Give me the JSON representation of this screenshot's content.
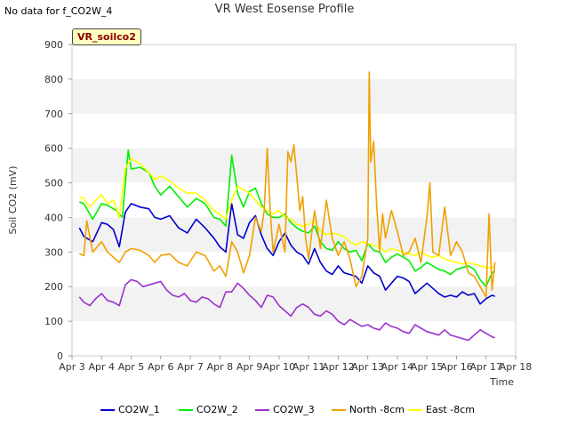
{
  "no_data_note": "No data for f_CO2W_4",
  "site_badge": "VR_soilco2",
  "chart_data": {
    "type": "line",
    "title": "VR West Eosense Profile",
    "xlabel": "Time",
    "ylabel": "Soil CO2 (mV)",
    "ylim": [
      0,
      900
    ],
    "yticks": [
      0,
      100,
      200,
      300,
      400,
      500,
      600,
      700,
      800,
      900
    ],
    "xlim": [
      3,
      18
    ],
    "xticks": [
      3,
      4,
      5,
      6,
      7,
      8,
      9,
      10,
      11,
      12,
      13,
      14,
      15,
      16,
      17,
      18
    ],
    "xtick_labels": [
      "Apr 3",
      "Apr 4",
      "Apr 5",
      "Apr 6",
      "Apr 7",
      "Apr 8",
      "Apr 9",
      "Apr 10",
      "Apr 11",
      "Apr 12",
      "Apr 13",
      "Apr 14",
      "Apr 15",
      "Apr 16",
      "Apr 17",
      "Apr 18"
    ],
    "grid": "alternating horizontal bands",
    "legend": "bottom",
    "series": [
      {
        "name": "CO2W_1",
        "color": "#0000cc",
        "x": [
          3.25,
          3.4,
          3.7,
          4.0,
          4.2,
          4.4,
          4.6,
          4.8,
          5.0,
          5.3,
          5.6,
          5.8,
          6.0,
          6.3,
          6.6,
          6.9,
          7.2,
          7.5,
          7.8,
          8.0,
          8.2,
          8.4,
          8.6,
          8.8,
          9.0,
          9.2,
          9.4,
          9.6,
          9.8,
          10.0,
          10.2,
          10.4,
          10.6,
          10.8,
          11.0,
          11.2,
          11.4,
          11.6,
          11.8,
          12.0,
          12.2,
          12.4,
          12.6,
          12.8,
          13.0,
          13.2,
          13.4,
          13.6,
          13.8,
          14.0,
          14.2,
          14.4,
          14.6,
          14.8,
          15.0,
          15.2,
          15.4,
          15.6,
          15.8,
          16.0,
          16.2,
          16.4,
          16.6,
          16.8,
          17.0,
          17.2,
          17.3
        ],
        "y": [
          370,
          345,
          330,
          385,
          380,
          365,
          315,
          415,
          440,
          430,
          425,
          400,
          395,
          405,
          370,
          355,
          395,
          370,
          340,
          315,
          300,
          440,
          350,
          340,
          385,
          405,
          350,
          310,
          290,
          330,
          355,
          320,
          300,
          290,
          265,
          310,
          270,
          245,
          235,
          260,
          240,
          235,
          230,
          210,
          260,
          240,
          230,
          190,
          210,
          230,
          225,
          215,
          180,
          195,
          210,
          195,
          180,
          170,
          175,
          170,
          185,
          175,
          180,
          150,
          165,
          175,
          172
        ]
      },
      {
        "name": "CO2W_2",
        "color": "#00ee00",
        "x": [
          3.25,
          3.4,
          3.7,
          4.0,
          4.2,
          4.5,
          4.7,
          4.9,
          5.0,
          5.3,
          5.6,
          5.8,
          6.0,
          6.3,
          6.6,
          6.9,
          7.2,
          7.5,
          7.8,
          8.0,
          8.2,
          8.4,
          8.6,
          8.8,
          9.0,
          9.2,
          9.4,
          9.6,
          9.8,
          10.0,
          10.2,
          10.4,
          10.6,
          10.8,
          11.0,
          11.2,
          11.4,
          11.6,
          11.8,
          12.0,
          12.2,
          12.4,
          12.6,
          12.8,
          13.0,
          13.2,
          13.4,
          13.6,
          13.8,
          14.0,
          14.2,
          14.4,
          14.6,
          14.8,
          15.0,
          15.2,
          15.4,
          15.6,
          15.8,
          16.0,
          16.2,
          16.4,
          16.6,
          16.8,
          17.0,
          17.2,
          17.3
        ],
        "y": [
          445,
          440,
          395,
          440,
          435,
          420,
          400,
          595,
          540,
          545,
          530,
          490,
          465,
          490,
          460,
          430,
          455,
          440,
          400,
          395,
          375,
          580,
          470,
          430,
          475,
          485,
          440,
          410,
          400,
          400,
          410,
          385,
          370,
          360,
          355,
          375,
          330,
          310,
          305,
          330,
          310,
          300,
          305,
          275,
          325,
          305,
          300,
          270,
          285,
          295,
          285,
          275,
          245,
          255,
          270,
          260,
          250,
          245,
          235,
          250,
          255,
          260,
          250,
          220,
          200,
          240,
          245
        ]
      },
      {
        "name": "CO2W_3",
        "color": "#9a32cd",
        "x": [
          3.25,
          3.4,
          3.6,
          3.8,
          4.0,
          4.2,
          4.4,
          4.6,
          4.8,
          5.0,
          5.2,
          5.4,
          5.6,
          5.8,
          6.0,
          6.2,
          6.4,
          6.6,
          6.8,
          7.0,
          7.2,
          7.4,
          7.6,
          7.8,
          8.0,
          8.2,
          8.4,
          8.6,
          8.8,
          9.0,
          9.2,
          9.4,
          9.6,
          9.8,
          10.0,
          10.2,
          10.4,
          10.6,
          10.8,
          11.0,
          11.2,
          11.4,
          11.6,
          11.8,
          12.0,
          12.2,
          12.4,
          12.6,
          12.8,
          13.0,
          13.2,
          13.4,
          13.6,
          13.8,
          14.0,
          14.2,
          14.4,
          14.6,
          14.8,
          15.0,
          15.2,
          15.4,
          15.6,
          15.8,
          16.0,
          16.2,
          16.4,
          16.6,
          16.8,
          17.0,
          17.2,
          17.3
        ],
        "y": [
          170,
          155,
          145,
          165,
          180,
          160,
          155,
          145,
          205,
          220,
          215,
          200,
          205,
          210,
          215,
          190,
          175,
          170,
          180,
          160,
          155,
          170,
          165,
          150,
          140,
          185,
          185,
          210,
          195,
          175,
          160,
          140,
          175,
          170,
          145,
          130,
          115,
          140,
          150,
          140,
          120,
          115,
          130,
          120,
          100,
          90,
          105,
          95,
          85,
          90,
          80,
          75,
          95,
          85,
          80,
          70,
          65,
          90,
          80,
          70,
          65,
          60,
          75,
          60,
          55,
          50,
          45,
          60,
          75,
          65,
          55,
          52
        ]
      },
      {
        "name": "North -8cm",
        "color": "#f0a000",
        "x": [
          3.25,
          3.4,
          3.5,
          3.7,
          4.0,
          4.2,
          4.4,
          4.6,
          4.8,
          5.0,
          5.3,
          5.6,
          5.8,
          6.0,
          6.3,
          6.6,
          6.9,
          7.2,
          7.5,
          7.8,
          8.0,
          8.2,
          8.4,
          8.6,
          8.8,
          9.0,
          9.2,
          9.4,
          9.5,
          9.6,
          9.7,
          9.8,
          10.0,
          10.2,
          10.3,
          10.4,
          10.5,
          10.6,
          10.7,
          10.8,
          10.9,
          11.0,
          11.2,
          11.4,
          11.6,
          11.8,
          12.0,
          12.2,
          12.4,
          12.6,
          12.8,
          13.0,
          13.05,
          13.1,
          13.2,
          13.3,
          13.4,
          13.5,
          13.6,
          13.8,
          14.0,
          14.2,
          14.4,
          14.6,
          14.8,
          15.0,
          15.1,
          15.2,
          15.4,
          15.6,
          15.8,
          16.0,
          16.2,
          16.4,
          16.6,
          16.8,
          17.0,
          17.1,
          17.2,
          17.3
        ],
        "y": [
          295,
          290,
          390,
          300,
          330,
          300,
          285,
          270,
          300,
          310,
          305,
          290,
          270,
          290,
          295,
          270,
          260,
          300,
          290,
          245,
          260,
          230,
          330,
          300,
          240,
          290,
          400,
          360,
          420,
          600,
          420,
          300,
          380,
          300,
          590,
          560,
          610,
          520,
          420,
          460,
          340,
          280,
          420,
          310,
          450,
          340,
          290,
          330,
          280,
          200,
          230,
          340,
          820,
          560,
          620,
          440,
          300,
          410,
          340,
          420,
          360,
          290,
          300,
          340,
          270,
          400,
          500,
          300,
          290,
          430,
          290,
          330,
          300,
          240,
          230,
          200,
          170,
          410,
          190,
          270
        ]
      },
      {
        "name": "East -8cm",
        "color": "#ffff00",
        "x": [
          3.25,
          3.4,
          3.6,
          3.8,
          4.0,
          4.2,
          4.4,
          4.6,
          4.8,
          5.0,
          5.3,
          5.6,
          5.8,
          6.0,
          6.3,
          6.6,
          6.9,
          7.2,
          7.5,
          7.8,
          8.0,
          8.2,
          8.4,
          8.6,
          8.8,
          9.0,
          9.2,
          9.4,
          9.6,
          9.8,
          10.0,
          10.2,
          10.4,
          10.6,
          10.8,
          11.0,
          11.2,
          11.4,
          11.6,
          11.8,
          12.0,
          12.2,
          12.4,
          12.6,
          12.8,
          13.0,
          13.2,
          13.4,
          13.6,
          13.8,
          14.0,
          14.2,
          14.4,
          14.6,
          14.8,
          15.0,
          15.2,
          15.4,
          15.6,
          15.8,
          16.0,
          16.2,
          16.4,
          16.6,
          16.8,
          17.0,
          17.2,
          17.3
        ],
        "y": [
          460,
          455,
          430,
          450,
          465,
          440,
          450,
          400,
          540,
          570,
          555,
          530,
          510,
          520,
          505,
          485,
          470,
          470,
          450,
          420,
          410,
          395,
          450,
          490,
          480,
          470,
          450,
          430,
          420,
          410,
          420,
          400,
          395,
          380,
          375,
          380,
          390,
          360,
          350,
          355,
          350,
          345,
          330,
          320,
          330,
          325,
          320,
          315,
          300,
          310,
          305,
          300,
          295,
          290,
          300,
          290,
          285,
          290,
          280,
          275,
          270,
          265,
          270,
          265,
          260,
          255,
          255,
          258
        ]
      }
    ]
  }
}
